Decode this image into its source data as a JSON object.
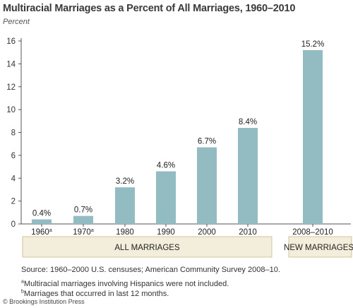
{
  "chart_data": {
    "type": "bar",
    "title": "Multiracial Marriages as a Percent of All Marriages, 1960–2010",
    "ylabel": "Percent",
    "xlabel": "",
    "ylim": [
      0,
      16
    ],
    "yticks": [
      0,
      2,
      4,
      6,
      8,
      10,
      12,
      14,
      16
    ],
    "grid": false,
    "bar_color": "#93bcc2",
    "categories": [
      {
        "label": "1960",
        "marker": "a"
      },
      {
        "label": "1970",
        "marker": "a"
      },
      {
        "label": "1980",
        "marker": ""
      },
      {
        "label": "1990",
        "marker": ""
      },
      {
        "label": "2000",
        "marker": ""
      },
      {
        "label": "2010",
        "marker": ""
      },
      {
        "label": "2008–2010",
        "marker": ""
      }
    ],
    "values": [
      0.4,
      0.7,
      3.2,
      4.6,
      6.7,
      8.4,
      15.2
    ],
    "data_labels": [
      "0.4%",
      "0.7%",
      "3.2%",
      "4.6%",
      "6.7%",
      "8.4%",
      "15.2%"
    ],
    "groups": [
      {
        "label": "ALL MARRIAGES",
        "marker": "",
        "from": 0,
        "to": 5
      },
      {
        "label": "NEW MARRIAGES",
        "marker": "b",
        "from": 6,
        "to": 6
      }
    ],
    "group_fill": "#f3eddc"
  },
  "footnotes": {
    "source": "Source: 1960–2000 U.S. censuses; American Community Survey 2008–10.",
    "note_a_marker": "a",
    "note_a": "Multiracial marriages involving Hispanics were not included.",
    "note_b_marker": "b",
    "note_b": "Marriages that occurred in last 12 months."
  },
  "credit": "© Brookings Institution Press"
}
